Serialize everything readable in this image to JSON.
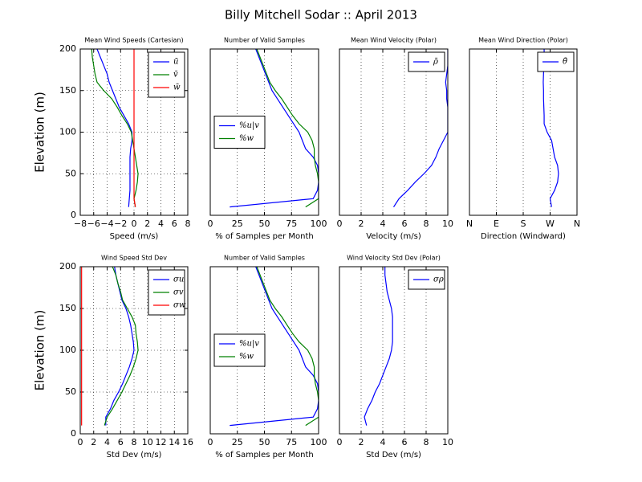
{
  "title": "Billy Mitchell Sodar :: April 2013",
  "chart_data": [
    {
      "type": "line",
      "title": "Mean Wind Speeds (Cartesian)",
      "xlabel": "Speed (m/s)",
      "ylabel": "Elevation (m)",
      "y": [
        10,
        20,
        30,
        40,
        50,
        60,
        70,
        80,
        90,
        100,
        110,
        120,
        130,
        140,
        150,
        160,
        170,
        180,
        190,
        200
      ],
      "series": [
        {
          "name": "ū",
          "color": "#0000ff",
          "values": [
            -0.8,
            -0.7,
            -0.6,
            -0.6,
            -0.6,
            -0.6,
            -0.6,
            -0.5,
            -0.3,
            -0.3,
            -0.8,
            -1.5,
            -2.2,
            -2.7,
            -3.2,
            -3.7,
            -4,
            -4.5,
            -5,
            -5.5
          ]
        },
        {
          "name": "v̄",
          "color": "#008000",
          "values": [
            0.2,
            0,
            0.3,
            0.5,
            0.6,
            0.4,
            0.2,
            0,
            -0.2,
            -0.4,
            -1,
            -1.8,
            -2.5,
            -3.3,
            -4.5,
            -5.5,
            -5.8,
            -6,
            -6.2,
            -6.3
          ]
        },
        {
          "name": "w̄",
          "color": "#ff0000",
          "values": [
            0.2,
            0,
            0,
            0,
            0,
            0,
            0,
            0,
            0,
            0,
            0,
            0,
            0,
            0,
            0,
            0,
            0,
            0,
            0,
            0
          ]
        }
      ],
      "xlim": [
        -8,
        8
      ],
      "xticks": [
        {
          "value": -8,
          "label": "−8"
        },
        {
          "value": -6,
          "label": "−6"
        },
        {
          "value": -4,
          "label": "−4"
        },
        {
          "value": -2,
          "label": "−2"
        },
        0,
        2,
        4,
        6,
        8
      ],
      "ylim": [
        0,
        200
      ],
      "yticks": [
        0,
        50,
        100,
        150,
        200
      ],
      "grid": true,
      "legend": "upper right"
    },
    {
      "type": "line",
      "title": "Number of Valid Samples",
      "xlabel": "% of Samples per Month",
      "y": [
        10,
        20,
        30,
        40,
        50,
        60,
        70,
        80,
        90,
        100,
        110,
        120,
        130,
        140,
        150,
        160,
        170,
        180,
        190,
        200
      ],
      "series": [
        {
          "name": "%u|v",
          "color": "#0000ff",
          "values": [
            18,
            95,
            99,
            100,
            100,
            99,
            95,
            88,
            85,
            82,
            77,
            72,
            67,
            62,
            57,
            54,
            51,
            48,
            45,
            42
          ]
        },
        {
          "name": "%w",
          "color": "#008000",
          "values": [
            88,
            100,
            100,
            100,
            99,
            97,
            96,
            96,
            94,
            90,
            82,
            76,
            71,
            66,
            60,
            55,
            52,
            49,
            46,
            43
          ]
        }
      ],
      "xlim": [
        0,
        100
      ],
      "xticks": [
        0,
        25,
        50,
        75,
        100
      ],
      "ylim": [
        0,
        200
      ],
      "grid": true,
      "legend": "center left"
    },
    {
      "type": "line",
      "title": "Mean Wind Velocity (Polar)",
      "xlabel": "Velocity (m/s)",
      "y": [
        10,
        20,
        30,
        40,
        50,
        60,
        70,
        80,
        90,
        100,
        110,
        120,
        130,
        140,
        150,
        160,
        170,
        180,
        190,
        200
      ],
      "series": [
        {
          "name": "ρ̄",
          "color": "#0000ff",
          "values": [
            5,
            5.5,
            6.3,
            7,
            7.8,
            8.5,
            8.9,
            9.2,
            9.6,
            10,
            10,
            10,
            10,
            9.9,
            9.9,
            9.8,
            9.9,
            10,
            10,
            10
          ]
        }
      ],
      "xlim": [
        0,
        10
      ],
      "xticks": [
        0,
        2,
        4,
        6,
        8,
        10
      ],
      "ylim": [
        0,
        200
      ],
      "grid": true,
      "legend": "upper right"
    },
    {
      "type": "line",
      "title": "Mean Wind Direction (Polar)",
      "xlabel": "Direction (Windward)",
      "y": [
        10,
        20,
        30,
        40,
        50,
        60,
        70,
        80,
        90,
        100,
        110,
        120,
        130,
        140,
        150,
        160,
        170,
        180,
        190,
        200
      ],
      "series": [
        {
          "name": "θ̄",
          "color": "#0000ff",
          "values": [
            275,
            270,
            285,
            295,
            298,
            295,
            285,
            280,
            275,
            260,
            250,
            250,
            249,
            248,
            248,
            247,
            248,
            249,
            250,
            250
          ]
        }
      ],
      "xlim": [
        0,
        360
      ],
      "xticks": [
        {
          "value": 0,
          "label": "N"
        },
        {
          "value": 90,
          "label": "E"
        },
        {
          "value": 180,
          "label": "S"
        },
        {
          "value": 270,
          "label": "W"
        },
        {
          "value": 360,
          "label": "N"
        }
      ],
      "ylim": [
        0,
        200
      ],
      "grid": true,
      "legend": "upper right"
    },
    {
      "type": "line",
      "title": "Wind Speed Std Dev",
      "xlabel": "Std Dev (m/s)",
      "ylabel": "Elevation (m)",
      "y": [
        10,
        20,
        30,
        40,
        50,
        60,
        70,
        80,
        90,
        100,
        110,
        120,
        130,
        140,
        150,
        160,
        170,
        180,
        190,
        200
      ],
      "series": [
        {
          "name": "σu",
          "color": "#0000ff",
          "values": [
            3.8,
            3.8,
            4.5,
            5,
            5.7,
            6.3,
            6.8,
            7.3,
            7.7,
            8,
            7.9,
            7.7,
            7.5,
            7.2,
            6.8,
            6.2,
            5.9,
            5.6,
            5.3,
            5.1
          ]
        },
        {
          "name": "σv",
          "color": "#008000",
          "values": [
            3.6,
            4,
            4.8,
            5.5,
            6.2,
            6.8,
            7.4,
            7.9,
            8.3,
            8.6,
            8.5,
            8.3,
            8.2,
            7.7,
            7,
            6.3,
            6,
            5.6,
            5.3,
            4.8
          ]
        },
        {
          "name": "σw",
          "color": "#ff0000",
          "values": [
            0.2,
            0.2,
            0.2,
            0.2,
            0.2,
            0.2,
            0.2,
            0.2,
            0.2,
            0.2,
            0.2,
            0.2,
            0.2,
            0.2,
            0.2,
            0.2,
            0.2,
            0.2,
            0.2,
            0.2
          ]
        }
      ],
      "xlim": [
        0,
        16
      ],
      "xticks": [
        0,
        2,
        4,
        6,
        8,
        10,
        12,
        14,
        16
      ],
      "ylim": [
        0,
        200
      ],
      "yticks": [
        0,
        50,
        100,
        150,
        200
      ],
      "grid": true,
      "legend": "upper right"
    },
    {
      "type": "line",
      "title": "Number of Valid Samples",
      "xlabel": "% of Samples per Month",
      "y": [
        10,
        20,
        30,
        40,
        50,
        60,
        70,
        80,
        90,
        100,
        110,
        120,
        130,
        140,
        150,
        160,
        170,
        180,
        190,
        200
      ],
      "series": [
        {
          "name": "%u|v",
          "color": "#0000ff",
          "values": [
            18,
            95,
            99,
            100,
            100,
            99,
            95,
            88,
            85,
            82,
            77,
            72,
            67,
            62,
            57,
            54,
            51,
            48,
            45,
            42
          ]
        },
        {
          "name": "%w",
          "color": "#008000",
          "values": [
            88,
            100,
            100,
            100,
            99,
            97,
            96,
            96,
            94,
            90,
            82,
            76,
            71,
            66,
            60,
            55,
            52,
            49,
            46,
            43
          ]
        }
      ],
      "xlim": [
        0,
        100
      ],
      "xticks": [
        0,
        25,
        50,
        75,
        100
      ],
      "ylim": [
        0,
        200
      ],
      "grid": true,
      "legend": "center left"
    },
    {
      "type": "line",
      "title": "Wind Velocity Std Dev (Polar)",
      "xlabel": "Std Dev (m/s)",
      "y": [
        10,
        20,
        30,
        40,
        50,
        60,
        70,
        80,
        90,
        100,
        110,
        120,
        130,
        140,
        150,
        160,
        170,
        180,
        190,
        200
      ],
      "series": [
        {
          "name": "σρ",
          "color": "#0000ff",
          "values": [
            2.5,
            2.3,
            2.6,
            3,
            3.3,
            3.7,
            4,
            4.3,
            4.6,
            4.8,
            4.9,
            4.9,
            4.9,
            4.9,
            4.8,
            4.6,
            4.4,
            4.3,
            4.2,
            4.2
          ]
        }
      ],
      "xlim": [
        0,
        10
      ],
      "xticks": [
        0,
        2,
        4,
        6,
        8,
        10
      ],
      "ylim": [
        0,
        200
      ],
      "grid": true,
      "legend": "upper right"
    }
  ]
}
